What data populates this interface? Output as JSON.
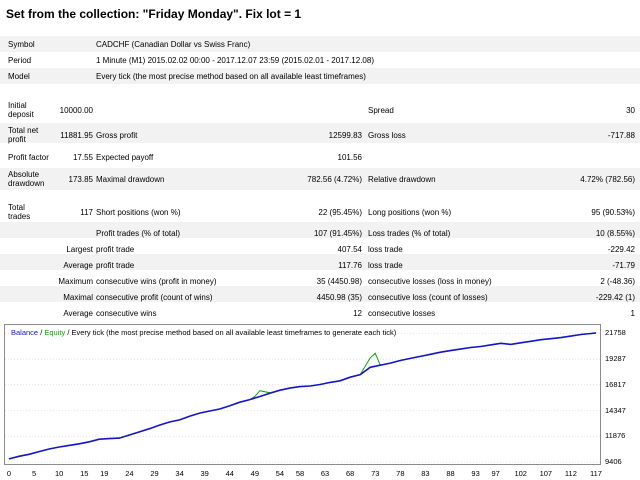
{
  "title": "Set from the collection: \"Friday Monday\".   Fix lot = 1",
  "info": {
    "symbol_label": "Symbol",
    "symbol_value": "CADCHF (Canadian Dollar vs Swiss Franc)",
    "period_label": "Period",
    "period_value": "1 Minute (M1) 2015.02.02 00:00 - 2017.12.07 23:59 (2015.02.01 - 2017.12.08)",
    "model_label": "Model",
    "model_value": "Every tick (the most precise method based on all available least timeframes)"
  },
  "stats": {
    "initial_deposit_label": "Initial deposit",
    "initial_deposit": "10000.00",
    "spread_label": "Spread",
    "spread": "30",
    "total_net_profit_label": "Total net profit",
    "total_net_profit": "11881.95",
    "gross_profit_label": "Gross profit",
    "gross_profit": "12599.83",
    "gross_loss_label": "Gross loss",
    "gross_loss": "-717.88",
    "profit_factor_label": "Profit factor",
    "profit_factor": "17.55",
    "expected_payoff_label": "Expected payoff",
    "expected_payoff": "101.56",
    "absolute_drawdown_label": "Absolute drawdown",
    "absolute_drawdown": "173.85",
    "maximal_drawdown_label": "Maximal drawdown",
    "maximal_drawdown": "782.56 (4.72%)",
    "relative_drawdown_label": "Relative drawdown",
    "relative_drawdown": "4.72% (782.56)",
    "total_trades_label": "Total trades",
    "total_trades": "117",
    "short_positions_label": "Short positions (won %)",
    "short_positions": "22 (95.45%)",
    "long_positions_label": "Long positions (won %)",
    "long_positions": "95 (90.53%)",
    "profit_trades_label": "Profit trades (% of total)",
    "profit_trades": "107 (91.45%)",
    "loss_trades_label": "Loss trades (% of total)",
    "loss_trades": "10 (8.55%)",
    "largest_label": "Largest",
    "largest_profit_label": "profit trade",
    "largest_profit": "407.54",
    "largest_loss_label": "loss trade",
    "largest_loss": "-229.42",
    "average_label": "Average",
    "average_profit_label": "profit trade",
    "average_profit": "117.76",
    "average_loss_label": "loss trade",
    "average_loss": "-71.79",
    "maximum_label": "Maximum",
    "max_cons_wins_label": "consecutive wins (profit in money)",
    "max_cons_wins": "35 (4450.98)",
    "max_cons_losses_label": "consecutive losses (loss in money)",
    "max_cons_losses": "2 (-48.36)",
    "maximal_label": "Maximal",
    "maximal_cons_profit_label": "consecutive profit (count of wins)",
    "maximal_cons_profit": "4450.98 (35)",
    "maximal_cons_loss_label": "consecutive loss (count of losses)",
    "maximal_cons_loss": "-229.42 (1)",
    "average2_label": "Average",
    "avg_cons_wins_label": "consecutive wins",
    "avg_cons_wins": "12",
    "avg_cons_losses_label": "consecutive losses",
    "avg_cons_losses": "1"
  },
  "legend": {
    "balance": "Balance",
    "separator": " / ",
    "equity": "Equity",
    "rest": " / Every tick (the most precise method based on all available least timeframes to generate each tick)"
  },
  "colors": {
    "balance": "#1515c8",
    "equity": "#10a010",
    "grid": "#c8c8c8",
    "shade": "#f2f2f2"
  },
  "chart_data": {
    "type": "line",
    "x_ticks": [
      "0",
      "5",
      "10",
      "15",
      "19",
      "24",
      "29",
      "34",
      "39",
      "44",
      "49",
      "54",
      "58",
      "63",
      "68",
      "73",
      "78",
      "83",
      "88",
      "93",
      "97",
      "102",
      "107",
      "112",
      "117"
    ],
    "y_ticks": [
      "21758",
      "19287",
      "16817",
      "14347",
      "11876",
      "9406"
    ],
    "xlim": [
      0,
      117
    ],
    "ylim": [
      9406,
      22370
    ],
    "series": [
      {
        "name": "Balance",
        "x": [
          0,
          2,
          4,
          6,
          8,
          10,
          12,
          14,
          16,
          18,
          20,
          22,
          24,
          26,
          28,
          30,
          32,
          34,
          36,
          38,
          40,
          42,
          44,
          46,
          48,
          50,
          52,
          54,
          56,
          58,
          60,
          62,
          64,
          66,
          68,
          70,
          72,
          74,
          76,
          78,
          80,
          82,
          84,
          86,
          88,
          90,
          92,
          94,
          96,
          98,
          100,
          102,
          104,
          106,
          108,
          110,
          112,
          114,
          116,
          117
        ],
        "y": [
          9700,
          9950,
          10150,
          10400,
          10650,
          10850,
          11000,
          11150,
          11350,
          11600,
          11650,
          11700,
          12000,
          12300,
          12600,
          12950,
          13250,
          13450,
          13800,
          14100,
          14300,
          14500,
          14800,
          15150,
          15400,
          15700,
          16000,
          16300,
          16500,
          16650,
          16700,
          16850,
          17050,
          17200,
          17550,
          17800,
          18500,
          18700,
          18900,
          19150,
          19350,
          19550,
          19750,
          19950,
          20100,
          20250,
          20400,
          20500,
          20650,
          20800,
          20700,
          20850,
          21000,
          21150,
          21250,
          21350,
          21500,
          21650,
          21750,
          21800
        ]
      },
      {
        "name": "Equity",
        "x": [
          0,
          2,
          4,
          6,
          8,
          10,
          12,
          14,
          16,
          18,
          20,
          22,
          24,
          26,
          28,
          30,
          32,
          34,
          36,
          38,
          40,
          42,
          44,
          46,
          48,
          49,
          50,
          52,
          54,
          56,
          58,
          60,
          62,
          64,
          66,
          68,
          70,
          71,
          72,
          73,
          74,
          76,
          78,
          80,
          82,
          84,
          86,
          88,
          90,
          92,
          94,
          96,
          98,
          100,
          102,
          104,
          106,
          108,
          110,
          112,
          114,
          116,
          117
        ],
        "y": [
          9700,
          9950,
          10150,
          10400,
          10650,
          10850,
          11000,
          11150,
          11350,
          11600,
          11650,
          11700,
          12000,
          12300,
          12600,
          12950,
          13250,
          13450,
          13800,
          14100,
          14300,
          14500,
          14800,
          15150,
          15400,
          15700,
          16250,
          16050,
          16300,
          16500,
          16650,
          16700,
          16850,
          17050,
          17200,
          17550,
          17800,
          18600,
          19400,
          19850,
          18700,
          18900,
          19150,
          19350,
          19550,
          19750,
          19950,
          20100,
          20250,
          20400,
          20500,
          20650,
          20800,
          20700,
          20850,
          21000,
          21150,
          21250,
          21350,
          21500,
          21650,
          21750,
          21800
        ]
      }
    ]
  }
}
